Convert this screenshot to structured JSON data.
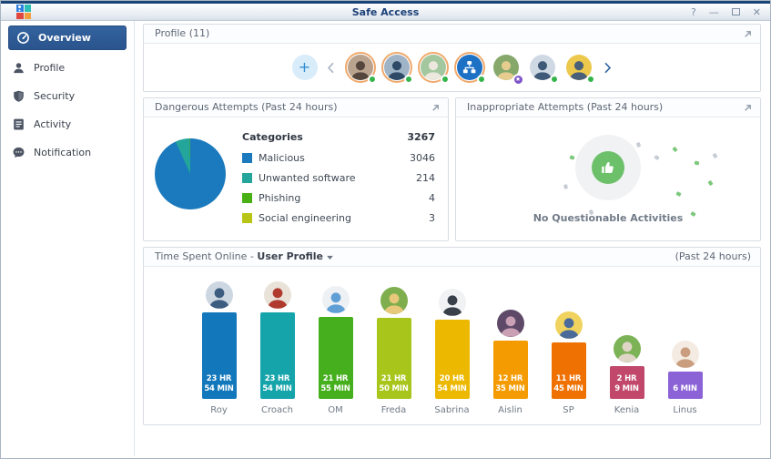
{
  "window": {
    "title": "Safe Access",
    "controls": [
      {
        "name": "help",
        "glyph": "?"
      },
      {
        "name": "minimize",
        "glyph": "—"
      },
      {
        "name": "maximize",
        "glyph": ""
      },
      {
        "name": "close",
        "glyph": "✕"
      }
    ]
  },
  "sidebar": {
    "items": [
      {
        "label": "Overview",
        "icon": "gauge-icon",
        "active": true
      },
      {
        "label": "Profile",
        "icon": "person-icon",
        "active": false
      },
      {
        "label": "Security",
        "icon": "shield-icon",
        "active": false
      },
      {
        "label": "Activity",
        "icon": "list-icon",
        "active": false
      },
      {
        "label": "Notification",
        "icon": "chat-icon",
        "active": false
      }
    ]
  },
  "profile_panel": {
    "title": "Profile (11)",
    "add_label": "+",
    "avatars": [
      {
        "kind": "person",
        "ring": true,
        "badge": "online",
        "bg": "#b9a28e",
        "fg": "#54463d"
      },
      {
        "kind": "person",
        "ring": true,
        "badge": "online",
        "bg": "#9fb4c7",
        "fg": "#2e4a66"
      },
      {
        "kind": "person",
        "ring": true,
        "badge": "online",
        "bg": "#a3c79e",
        "fg": "#ece8de"
      },
      {
        "kind": "group",
        "ring": true,
        "badge": "online",
        "bg": "#1d71c5",
        "fg": "#ffffff"
      },
      {
        "kind": "person",
        "ring": false,
        "badge": "star",
        "bg": "#86a86b",
        "fg": "#e6cd8f"
      },
      {
        "kind": "person",
        "ring": false,
        "badge": "online",
        "bg": "#cfd9e4",
        "fg": "#3f5a78"
      },
      {
        "kind": "person",
        "ring": false,
        "badge": "online",
        "bg": "#ecc94d",
        "fg": "#4a6078"
      }
    ]
  },
  "dangerous_panel": {
    "title": "Dangerous Attempts",
    "period": "(Past 24 hours)",
    "legend_header": "Categories"
  },
  "inappropriate_panel": {
    "title": "Inappropriate Attempts",
    "period": "(Past 24 hours)",
    "message": "No Questionable Activities"
  },
  "time_panel": {
    "title": "Time Spent Online -",
    "selector": "User Profile",
    "period": "(Past 24 hours)"
  },
  "chart_data": [
    {
      "id": "dangerous_pie",
      "type": "pie",
      "title": "Dangerous Attempts (Past 24 hours)",
      "total": 3267,
      "legend_position": "right",
      "slices": [
        {
          "label": "Malicious",
          "value": 3046,
          "color": "#1a7abd"
        },
        {
          "label": "Unwanted software",
          "value": 214,
          "color": "#23a59b"
        },
        {
          "label": "Phishing",
          "value": 4,
          "color": "#49b013"
        },
        {
          "label": "Social engineering",
          "value": 3,
          "color": "#b8c517"
        }
      ]
    },
    {
      "id": "time_bars",
      "type": "bar",
      "title": "Time Spent Online - User Profile (Past 24 hours)",
      "ylabel": "time online",
      "categories": [
        "Roy",
        "Croach",
        "OM",
        "Freda",
        "Sabrina",
        "Aislin",
        "SP",
        "Kenia",
        "Linus"
      ],
      "values_minutes": [
        1434,
        1434,
        1315,
        1310,
        1254,
        755,
        705,
        129,
        6
      ],
      "labels": [
        [
          "23 HR",
          "54 MIN"
        ],
        [
          "23 HR",
          "54 MIN"
        ],
        [
          "21 HR",
          "55 MIN"
        ],
        [
          "21 HR",
          "50 MIN"
        ],
        [
          "20 HR",
          "54 MIN"
        ],
        [
          "12 HR",
          "35 MIN"
        ],
        [
          "11 HR",
          "45 MIN"
        ],
        [
          "2 HR",
          "9 MIN"
        ],
        [
          "6 MIN"
        ]
      ],
      "colors": [
        "#1278bb",
        "#16a4ab",
        "#46af1e",
        "#a8c51c",
        "#ecb800",
        "#f49b01",
        "#ee7102",
        "#c1486a",
        "#8b63d6"
      ],
      "avatar_colors": [
        [
          "#cdd7e2",
          "#3c5d80"
        ],
        [
          "#e9e2d8",
          "#b03a2e"
        ],
        [
          "#eef1f4",
          "#5f9fd6"
        ],
        [
          "#7fae4e",
          "#e8c87a"
        ],
        [
          "#f1f2f4",
          "#3a4049"
        ],
        [
          "#5e4a68",
          "#c9a0b4"
        ],
        [
          "#f0d35e",
          "#4a6a9a"
        ],
        [
          "#7cb356",
          "#e0d6c8"
        ],
        [
          "#f4ece2",
          "#c99d7d"
        ]
      ]
    }
  ]
}
